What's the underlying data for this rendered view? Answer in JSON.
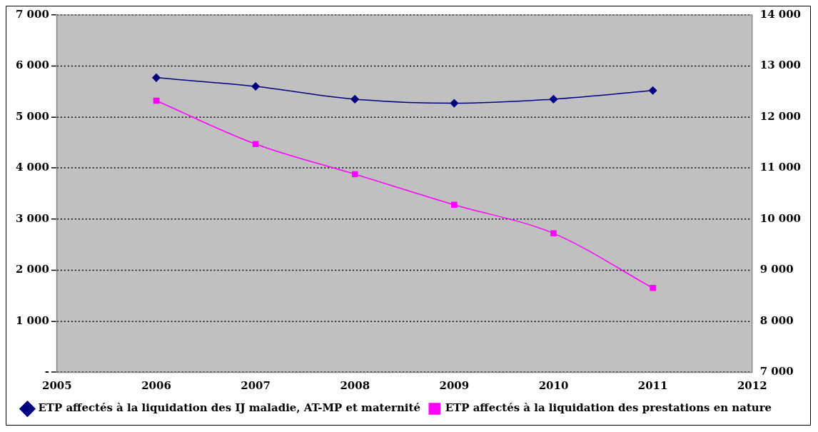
{
  "chart_data": {
    "type": "line",
    "x": [
      2006,
      2007,
      2008,
      2009,
      2010,
      2011
    ],
    "xlim": [
      2005,
      2012
    ],
    "xticks": [
      2005,
      2006,
      2007,
      2008,
      2009,
      2010,
      2011,
      2012
    ],
    "ylim": [
      0,
      7000
    ],
    "yticks": [
      {
        "value": 0,
        "label": "-"
      },
      {
        "value": 1000,
        "label": "1 000"
      },
      {
        "value": 2000,
        "label": "2 000"
      },
      {
        "value": 3000,
        "label": "3 000"
      },
      {
        "value": 4000,
        "label": "4 000"
      },
      {
        "value": 5000,
        "label": "5 000"
      },
      {
        "value": 6000,
        "label": "6 000"
      },
      {
        "value": 7000,
        "label": "7 000"
      }
    ],
    "y2lim": [
      7000,
      14000
    ],
    "y2ticks": [
      {
        "value": 7000,
        "label": "7 000"
      },
      {
        "value": 8000,
        "label": "8 000"
      },
      {
        "value": 9000,
        "label": "9 000"
      },
      {
        "value": 10000,
        "label": "10 000"
      },
      {
        "value": 11000,
        "label": "11 000"
      },
      {
        "value": 12000,
        "label": "12 000"
      },
      {
        "value": 13000,
        "label": "13 000"
      },
      {
        "value": 14000,
        "label": "14 000"
      }
    ],
    "series": [
      {
        "name": "ETP affectés à la liquidation des IJ maladie, AT-MP et maternité",
        "color": "#000080",
        "marker": "diamond",
        "values": [
          5770,
          5600,
          5350,
          5270,
          5350,
          5520
        ]
      },
      {
        "name": "ETP affectés à la liquidation des prestations en nature",
        "color": "#ff00ff",
        "marker": "square",
        "axis": "y2",
        "values": [
          12320,
          11470,
          10880,
          10280,
          9720,
          8650
        ]
      }
    ],
    "grid": "y",
    "line_style": "solid",
    "legend": "bottom"
  }
}
